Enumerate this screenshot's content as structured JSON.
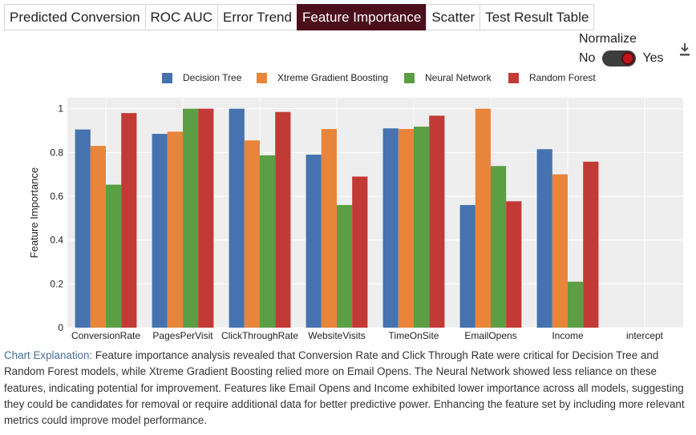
{
  "tabs": [
    {
      "label": "Predicted Conversion",
      "active": false
    },
    {
      "label": "ROC AUC",
      "active": false
    },
    {
      "label": "Error Trend",
      "active": false
    },
    {
      "label": "Feature Importance",
      "active": true
    },
    {
      "label": "Scatter",
      "active": false
    },
    {
      "label": "Test Result Table",
      "active": false
    }
  ],
  "normalize": {
    "title": "Normalize",
    "off_label": "No",
    "on_label": "Yes",
    "value": true
  },
  "download_icon": "download-icon",
  "colors": {
    "accent": "#4b0f1c",
    "toggle_knob": "#c0141e",
    "plot_bg": "#eeeeee"
  },
  "chart_data": {
    "type": "bar",
    "title": "",
    "xlabel": "",
    "ylabel": "Feature Importance",
    "ylim": [
      0,
      1.05
    ],
    "yticks": [
      0,
      0.2,
      0.4,
      0.6,
      0.8,
      1
    ],
    "ytick_labels": [
      "0",
      "0.2",
      "0.4",
      "0.6",
      "0.8",
      "1"
    ],
    "grid": true,
    "legend_position": "top",
    "categories": [
      "ConversionRate",
      "PagesPerVisit",
      "ClickThroughRate",
      "WebsiteVisits",
      "TimeOnSite",
      "EmailOpens",
      "Income",
      "intercept"
    ],
    "series": [
      {
        "name": "Decision Tree",
        "color": "#4672b0",
        "values": [
          0.905,
          0.885,
          1.0,
          0.79,
          0.91,
          0.56,
          0.815,
          0
        ]
      },
      {
        "name": "Xtreme Gradient Boosting",
        "color": "#e8853a",
        "values": [
          0.83,
          0.895,
          0.855,
          0.907,
          0.907,
          1.0,
          0.7,
          0
        ]
      },
      {
        "name": "Neural Network",
        "color": "#5b9e44",
        "values": [
          0.653,
          1.0,
          0.787,
          0.56,
          0.918,
          0.738,
          0.21,
          0
        ]
      },
      {
        "name": "Random Forest",
        "color": "#c23a35",
        "values": [
          0.98,
          1.0,
          0.985,
          0.69,
          0.968,
          0.577,
          0.758,
          0
        ]
      }
    ]
  },
  "explanation": {
    "label": "Chart Explanation:",
    "text": "Feature importance analysis revealed that Conversion Rate and Click Through Rate were critical for Decision Tree and Random Forest models, while Xtreme Gradient Boosting relied more on Email Opens. The Neural Network showed less reliance on these features, indicating potential for improvement. Features like Email Opens and Income exhibited lower importance across all models, suggesting they could be candidates for removal or require additional data for better predictive power. Enhancing the feature set by including more relevant metrics could improve model performance."
  }
}
